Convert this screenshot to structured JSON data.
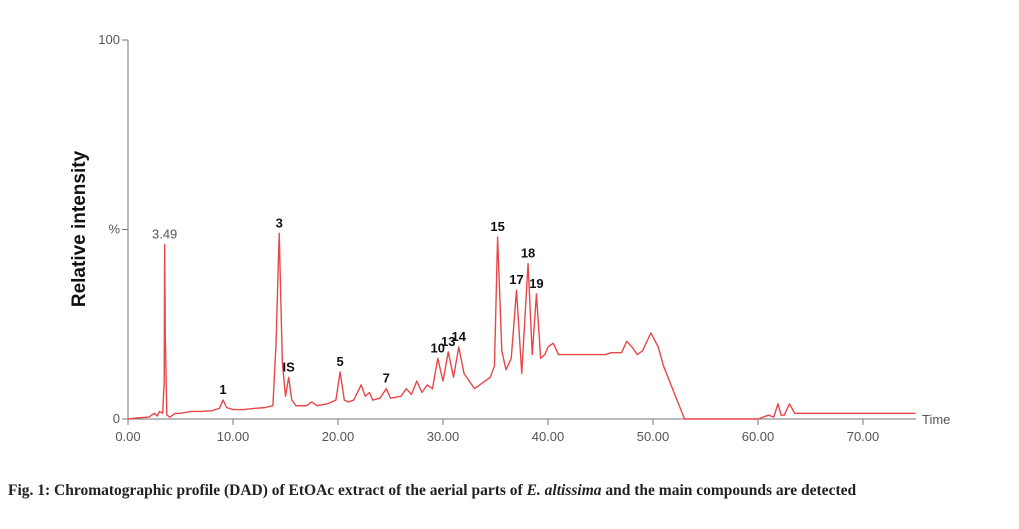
{
  "chart_data": {
    "type": "line",
    "y_label": "Relative intensity",
    "x_label": "Time",
    "xlim": [
      0,
      75
    ],
    "ylim": [
      0,
      100
    ],
    "xticks": [
      {
        "value": 0,
        "label": "0.00"
      },
      {
        "value": 10,
        "label": "10.00"
      },
      {
        "value": 20,
        "label": "20.00"
      },
      {
        "value": 30,
        "label": "30.00"
      },
      {
        "value": 40,
        "label": "40.00"
      },
      {
        "value": 50,
        "label": "50.00"
      },
      {
        "value": 60,
        "label": "60.00"
      },
      {
        "value": 70,
        "label": "70.00"
      }
    ],
    "yticks": [
      0,
      {
        "value": 50,
        "label": "%"
      },
      100
    ],
    "color": "#e8474a",
    "x": [
      0,
      1,
      2,
      2.5,
      2.8,
      3.0,
      3.3,
      3.45,
      3.49,
      3.55,
      3.7,
      4.0,
      4.5,
      5,
      6,
      7,
      8,
      8.7,
      9.05,
      9.4,
      10,
      11,
      12,
      13,
      13.8,
      14.1,
      14.4,
      14.7,
      15.0,
      15.3,
      15.6,
      16,
      17,
      17.5,
      18,
      19,
      19.8,
      20.2,
      20.6,
      21,
      21.5,
      22.2,
      22.6,
      23,
      23.3,
      24,
      24.6,
      25,
      26,
      26.5,
      27,
      27.5,
      28,
      28.5,
      29,
      29.5,
      30,
      30.5,
      31,
      31.5,
      32,
      33,
      34,
      34.5,
      34.9,
      35.2,
      35.6,
      36,
      36.5,
      37,
      37.5,
      38.1,
      38.5,
      38.9,
      39.3,
      39.7,
      40,
      40.5,
      41,
      42,
      44,
      45.5,
      46,
      47,
      47.5,
      48,
      48.5,
      49,
      49.8,
      50.5,
      51,
      52,
      53,
      55,
      58,
      60,
      61,
      61.5,
      61.9,
      62.2,
      62.5,
      63,
      63.5,
      64,
      66,
      70,
      75
    ],
    "values": [
      0,
      0.3,
      0.5,
      1.5,
      0.8,
      2,
      1.5,
      10,
      46,
      22,
      1,
      0.5,
      1.5,
      1.5,
      2,
      2,
      2.2,
      2.8,
      5,
      3,
      2.5,
      2.5,
      2.8,
      3,
      3.5,
      20,
      49,
      15,
      6,
      11,
      5,
      3.5,
      3.5,
      4.5,
      3.5,
      4,
      5,
      12.4,
      5,
      4.5,
      5,
      9,
      6,
      7,
      5,
      5.5,
      8,
      5.5,
      6,
      8,
      6.5,
      10,
      7,
      9,
      8,
      16,
      10,
      17.7,
      11,
      19,
      12,
      8,
      10,
      11,
      14,
      48,
      18,
      13,
      16,
      34,
      12,
      41,
      17,
      33,
      16,
      17,
      19,
      20,
      17,
      17,
      17,
      17,
      17.5,
      17.5,
      20.5,
      19,
      17,
      18,
      22.7,
      19,
      14,
      7,
      0,
      0,
      0,
      0,
      1,
      0.5,
      4,
      1,
      1,
      4,
      1.5,
      1.5,
      1.5,
      1.5,
      1.5
    ],
    "peaks": {
      "labels": [
        "3.49",
        "1",
        "3",
        "IS",
        "5",
        "7",
        "10",
        "13",
        "14",
        "15",
        "17",
        "18",
        "19"
      ],
      "x": [
        3.49,
        9.05,
        14.4,
        15.3,
        20.2,
        24.6,
        29.5,
        30.5,
        31.5,
        35.2,
        37,
        38.1,
        38.9
      ],
      "values": [
        46,
        5,
        49,
        11,
        12.4,
        8,
        16,
        17.7,
        19,
        48,
        34,
        41,
        33
      ]
    }
  },
  "caption": {
    "prefix": "Fig. 1: Chromatographic profile (DAD) of EtOAc extract of the aerial parts of ",
    "species": "E. altissima",
    "suffix": " and the main compounds are detected"
  }
}
